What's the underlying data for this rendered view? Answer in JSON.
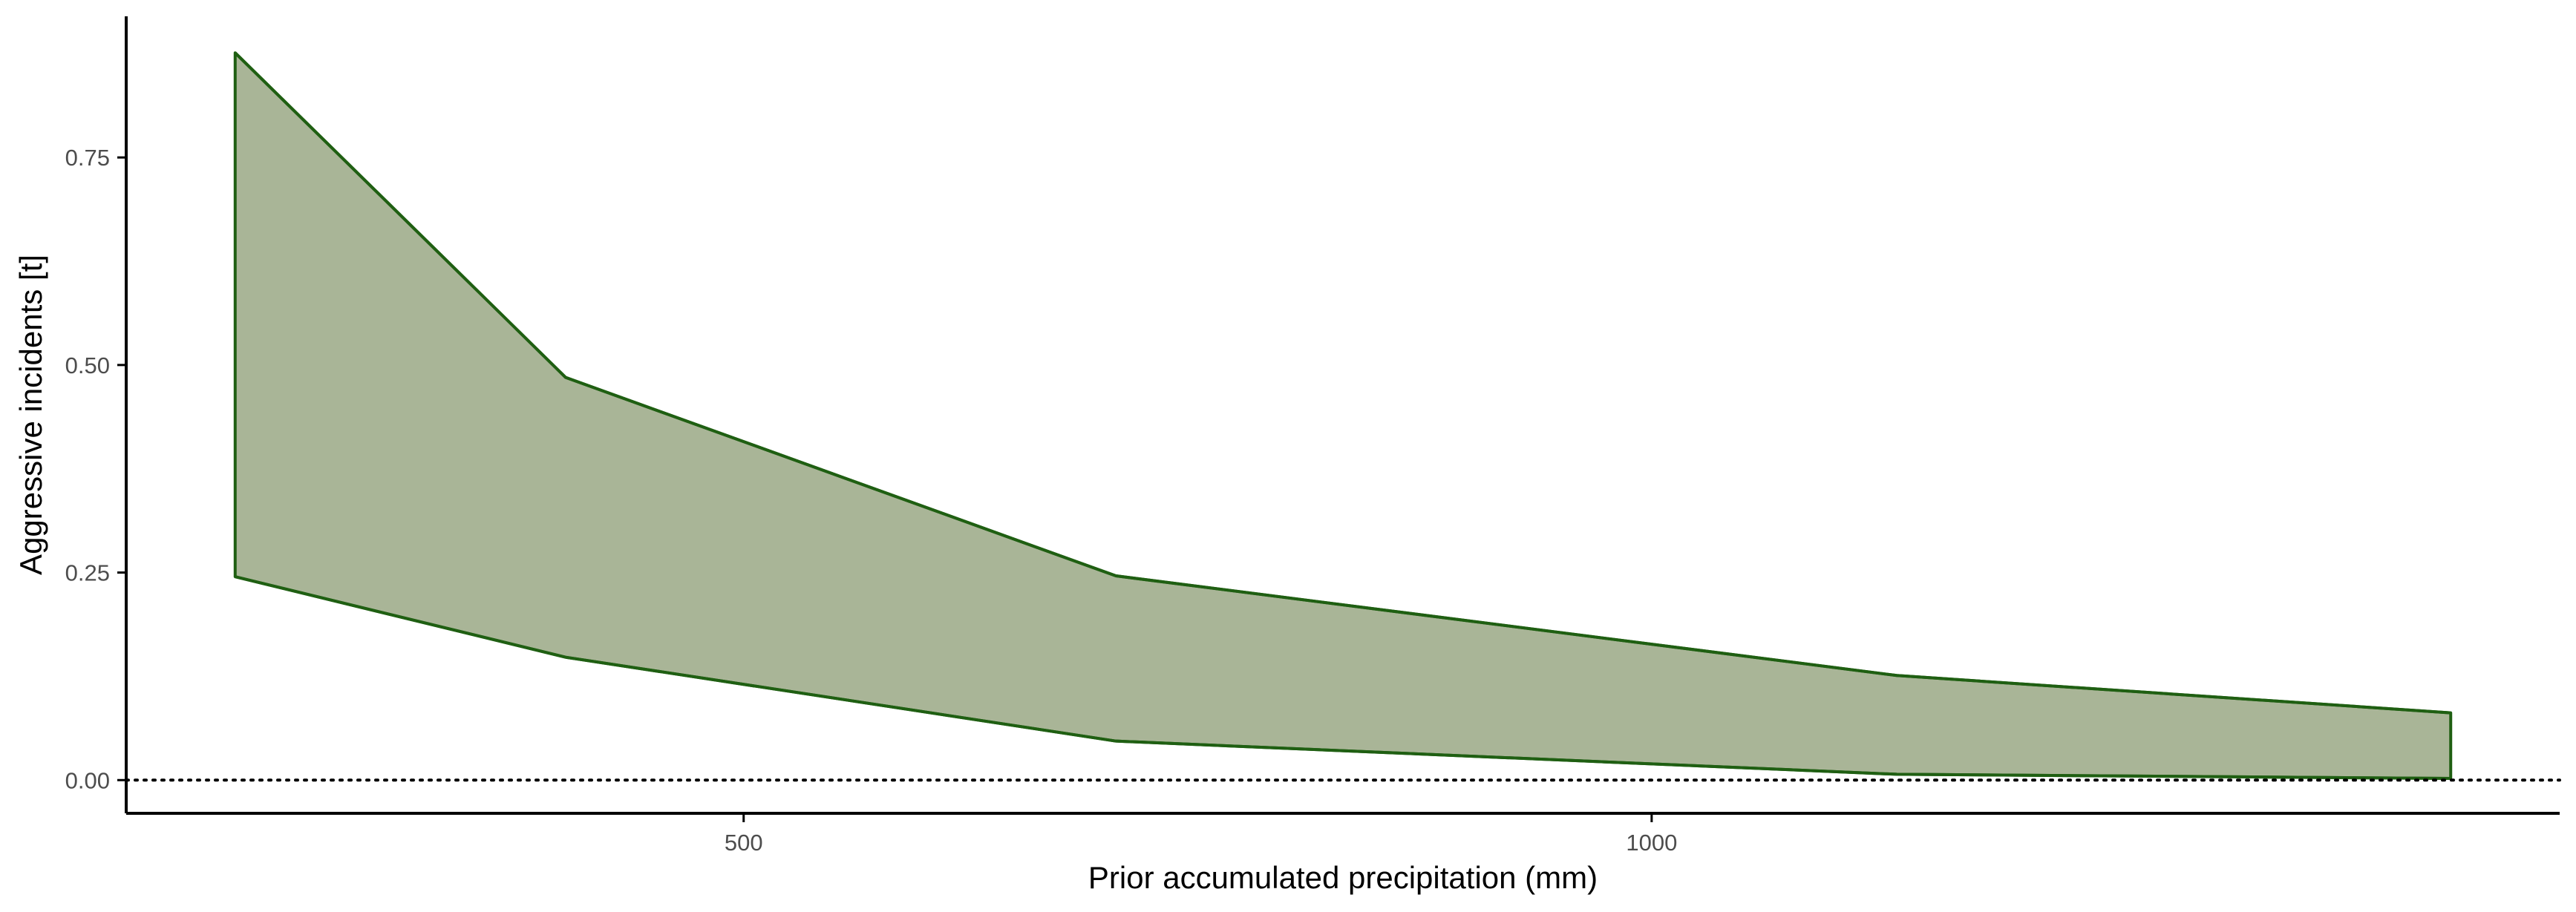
{
  "chart_data": {
    "type": "area",
    "title": "",
    "xlabel": "Prior accumulated precipitation (mm)",
    "ylabel": "Aggressive incidents [t]",
    "xlim": [
      160,
      1500
    ],
    "ylim": [
      -0.04,
      0.92
    ],
    "x_ticks": [
      500,
      1000
    ],
    "x_tick_labels": [
      "500",
      "1000"
    ],
    "y_ticks": [
      0,
      0.25,
      0.5,
      0.75
    ],
    "y_tick_labels": [
      "0.00",
      "0.25",
      "0.50",
      "0.75"
    ],
    "x": [
      220,
      402,
      705,
      1135,
      1440
    ],
    "upper": [
      0.876,
      0.485,
      0.246,
      0.126,
      0.081
    ],
    "lower": [
      0.245,
      0.148,
      0.047,
      0.007,
      0.002
    ],
    "reference_line": 0,
    "grid": false,
    "legend": "none",
    "colors": {
      "fill": "#a9b597",
      "line": "#1f5f12",
      "axis": "#000000",
      "tick_text": "#4d4d4d"
    }
  }
}
